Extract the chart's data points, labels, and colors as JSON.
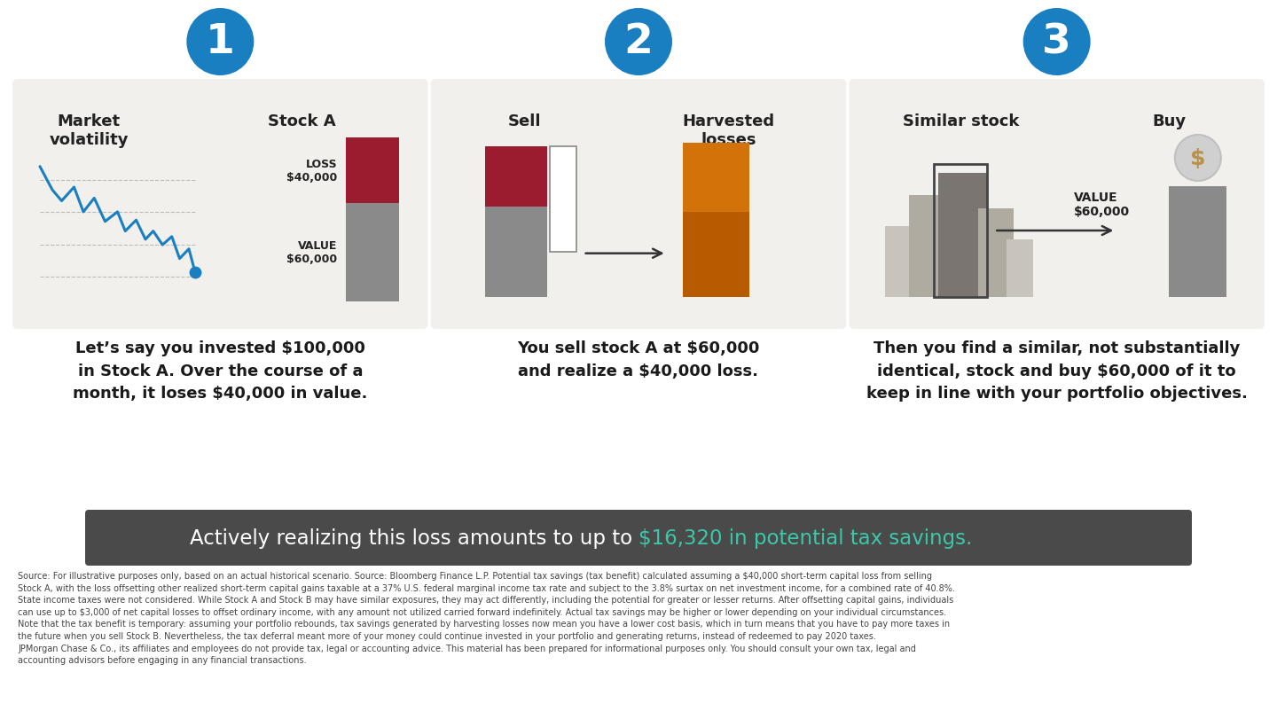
{
  "bg_color": "#ffffff",
  "panel_bg": "#f2f0ec",
  "step_circle_color": "#1a7fc1",
  "step_circle_text_color": "#ffffff",
  "step1_loss_color": "#9b1c2e",
  "step1_value_color": "#8a8a8a",
  "step1_line_color": "#1a7fc1",
  "step2_sell_loss_color": "#9b1c2e",
  "step2_sell_value_color": "#8a8a8a",
  "step2_harvest_top_color": "#d4720a",
  "step2_harvest_bot_color": "#b85a00",
  "step2_arrow_color": "#333333",
  "step3_arrow_color": "#333333",
  "step3_coin_bg": "#d0d0d0",
  "step3_coin_fg": "#b8924a",
  "banner_bg": "#4a4a4a",
  "banner_text1": "Actively realizing this loss amounts to up to ",
  "banner_highlight": "$16,320 in potential tax savings.",
  "banner_text_color": "#ffffff",
  "banner_highlight_color": "#3cc8a8",
  "desc1": "Let’s say you invested $100,000\nin Stock A. Over the course of a\nmonth, it loses $40,000 in value.",
  "desc2": "You sell stock A at $60,000\nand realize a $40,000 loss.",
  "desc3": "Then you find a similar, not substantially\nidentical, stock and buy $60,000 of it to\nkeep in line with your portfolio objectives.",
  "footnote": "Source: For illustrative purposes only, based on an actual historical scenario. Source: Bloomberg Finance L.P. Potential tax savings (tax benefit) calculated assuming a $40,000 short-term capital loss from selling\nStock A, with the loss offsetting other realized short-term capital gains taxable at a 37% U.S. federal marginal income tax rate and subject to the 3.8% surtax on net investment income, for a combined rate of 40.8%.\nState income taxes were not considered. While Stock A and Stock B may have similar exposures, they may act differently, including the potential for greater or lesser returns. After offsetting capital gains, individuals\ncan use up to $3,000 of net capital losses to offset ordinary income, with any amount not utilized carried forward indefinitely. Actual tax savings may be higher or lower depending on your individual circumstances.\nNote that the tax benefit is temporary: assuming your portfolio rebounds, tax savings generated by harvesting losses now mean you have a lower cost basis, which in turn means that you have to pay more taxes in\nthe future when you sell Stock B. Nevertheless, the tax deferral meant more of your money could continue invested in your portfolio and generating returns, instead of redeemed to pay 2020 taxes.\nJPMorgan Chase & Co., its affiliates and employees do not provide tax, legal or accounting advice. This material has been prepared for informational purposes only. You should consult your own tax, legal and\naccounting advisors before engaging in any financial transactions."
}
